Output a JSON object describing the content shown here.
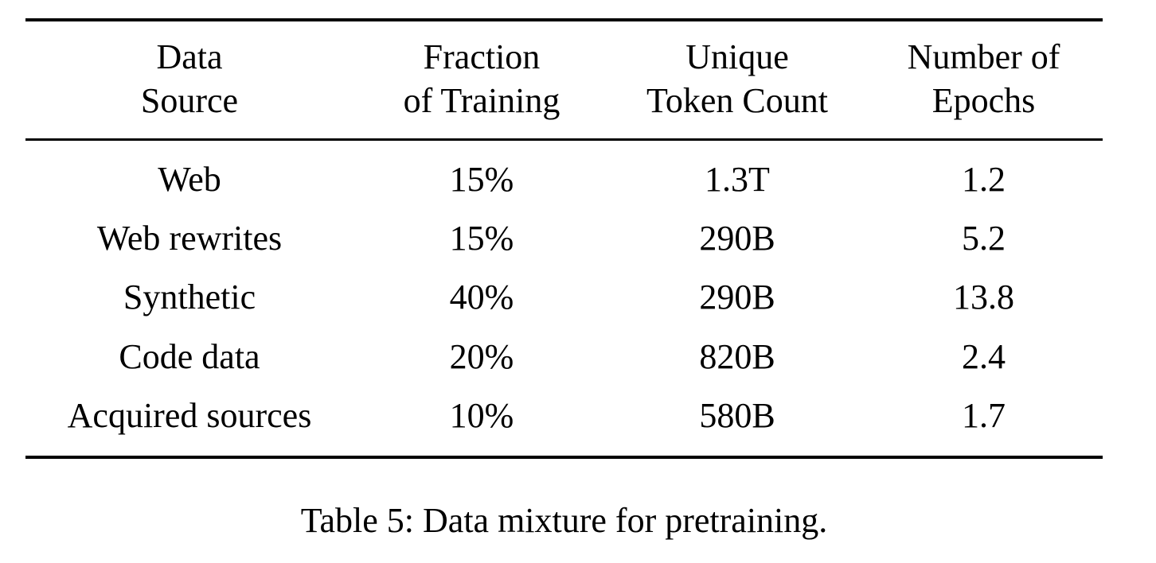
{
  "table": {
    "columns": [
      {
        "line1": "Data",
        "line2": "Source"
      },
      {
        "line1": "Fraction",
        "line2": "of Training"
      },
      {
        "line1": "Unique",
        "line2": "Token Count"
      },
      {
        "line1": "Number of",
        "line2": "Epochs"
      }
    ],
    "rows": [
      {
        "source": "Web",
        "fraction": "15%",
        "tokens": "1.3T",
        "epochs": "1.2"
      },
      {
        "source": "Web rewrites",
        "fraction": "15%",
        "tokens": "290B",
        "epochs": "5.2"
      },
      {
        "source": "Synthetic",
        "fraction": "40%",
        "tokens": "290B",
        "epochs": "13.8"
      },
      {
        "source": "Code data",
        "fraction": "20%",
        "tokens": "820B",
        "epochs": "2.4"
      },
      {
        "source": "Acquired sources",
        "fraction": "10%",
        "tokens": "580B",
        "epochs": "1.7"
      }
    ]
  },
  "caption": "Table 5: Data mixture for pretraining.",
  "colors": {
    "text": "#000000",
    "rule": "#000000",
    "background": "#ffffff"
  }
}
